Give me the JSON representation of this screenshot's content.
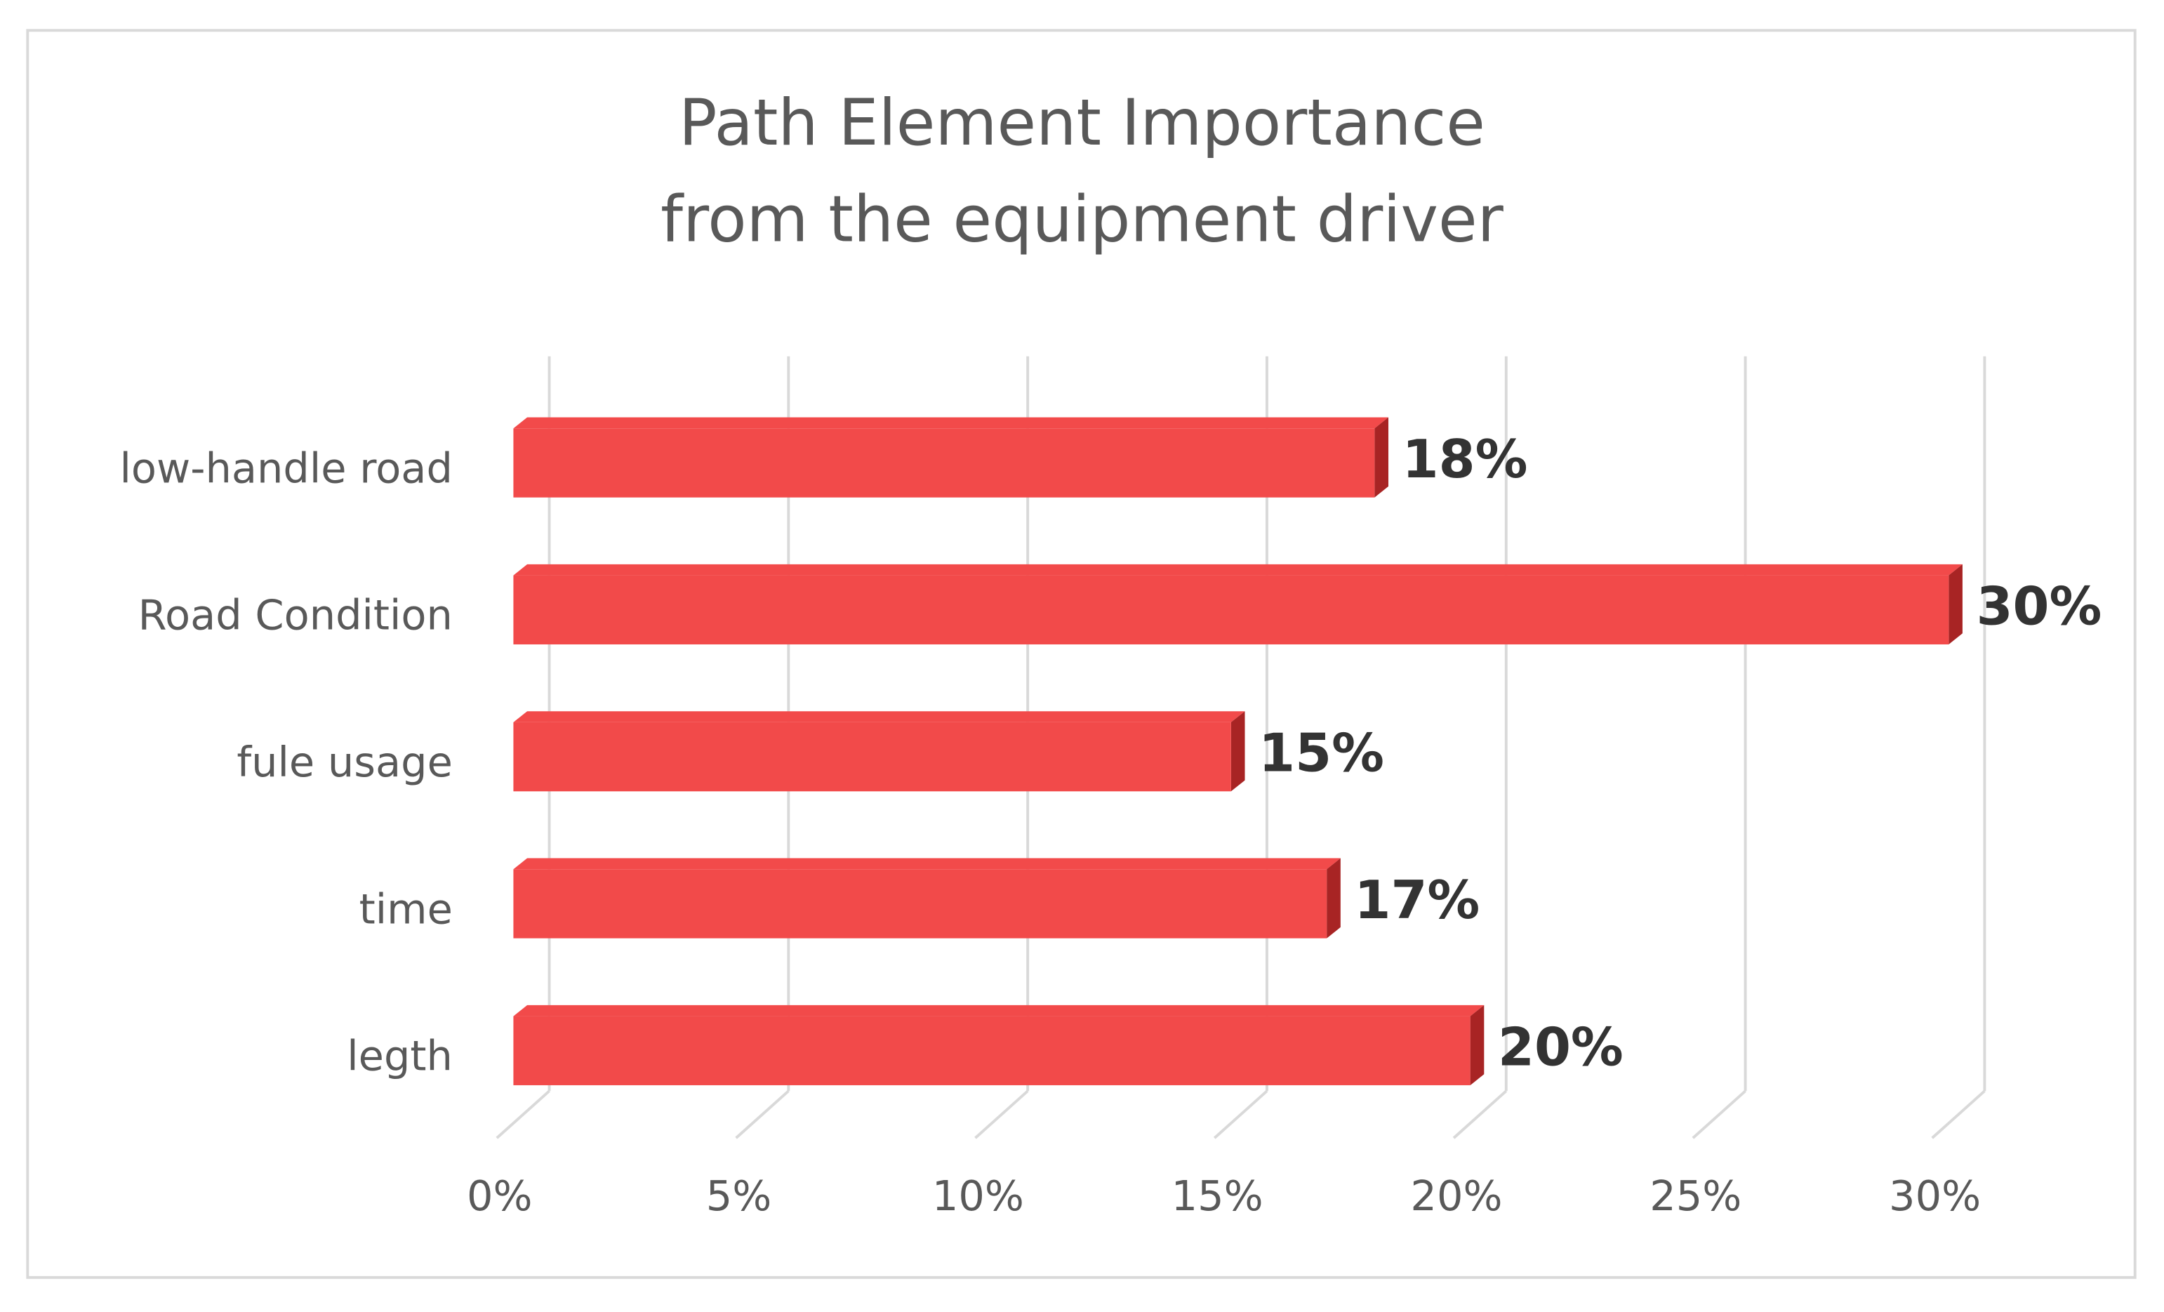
{
  "chart_data": {
    "type": "bar",
    "orientation": "horizontal",
    "title": [
      "Path Element Importance",
      "from the equipment driver"
    ],
    "categories": [
      "low-handle road",
      "Road Condition",
      "fule usage",
      "time",
      "legth"
    ],
    "values": [
      18,
      30,
      15,
      17,
      20
    ],
    "value_labels": [
      "18%",
      "30%",
      "15%",
      "17%",
      "20%"
    ],
    "color": "#f24a4a",
    "side_color": "#a82424",
    "xlim": [
      0,
      30
    ],
    "xticks": [
      {
        "value": 0,
        "label": "0%"
      },
      {
        "value": 5,
        "label": "5%"
      },
      {
        "value": 10,
        "label": "10%"
      },
      {
        "value": 15,
        "label": "15%"
      },
      {
        "value": 20,
        "label": "20%"
      },
      {
        "value": 25,
        "label": "25%"
      },
      {
        "value": 30,
        "label": "30%"
      }
    ],
    "grid": true
  }
}
